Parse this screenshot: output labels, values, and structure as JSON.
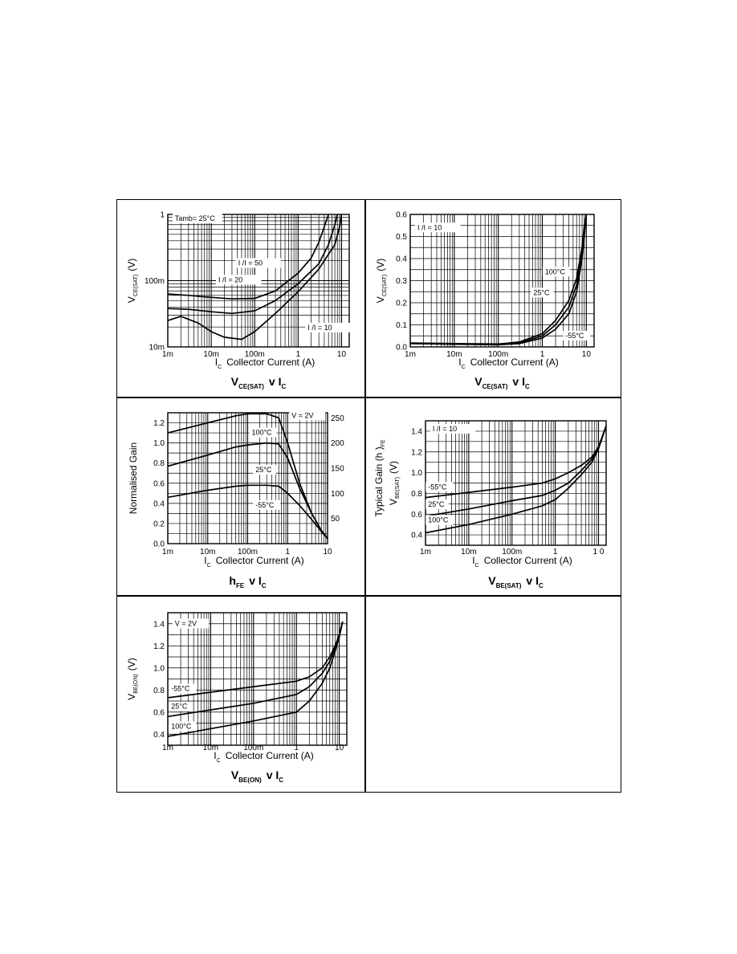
{
  "chart_data": [
    {
      "id": "vcesat-1",
      "type": "line",
      "x_scale": "log",
      "y_scale": "log",
      "xlim": [
        0.001,
        15
      ],
      "ylim": [
        0.01,
        1
      ],
      "x_ticks": [
        {
          "v": 0.001,
          "t": "1m"
        },
        {
          "v": 0.01,
          "t": "10m"
        },
        {
          "v": 0.1,
          "t": "100m"
        },
        {
          "v": 1,
          "t": "1"
        },
        {
          "v": 10,
          "t": "10"
        }
      ],
      "y_ticks": [
        {
          "v": 1,
          "t": "1"
        },
        {
          "v": 0.1,
          "t": "100m"
        },
        {
          "v": 0.01,
          "t": "10m"
        }
      ],
      "xlabel_sub": "C",
      "xlabel_main": "Collector Current (A)",
      "ylabel_main": "V",
      "ylabel_sub": "CE(SAT)",
      "ylabel_unit": "(V)",
      "title_main": "V",
      "title_sub1": "CE(SAT)",
      "title_mid": "v I",
      "title_sub2": "C",
      "annotations": [
        {
          "text": "Tamb= 25°C",
          "x": 0.0014,
          "y": 0.8
        },
        {
          "text": "I /I = 50",
          "x": 0.04,
          "y": 0.17
        },
        {
          "text": "I /I = 20",
          "x": 0.014,
          "y": 0.095
        },
        {
          "text": "I /I = 10",
          "x": 1.6,
          "y": 0.018
        }
      ],
      "series": [
        {
          "x": [
            0.001,
            0.003,
            0.01,
            0.03,
            0.1,
            0.3,
            1,
            2,
            3,
            4,
            5
          ],
          "y": [
            0.063,
            0.06,
            0.056,
            0.053,
            0.054,
            0.07,
            0.13,
            0.22,
            0.38,
            0.65,
            1.0
          ]
        },
        {
          "x": [
            0.001,
            0.003,
            0.01,
            0.03,
            0.1,
            0.3,
            1,
            3,
            5,
            7,
            8
          ],
          "y": [
            0.038,
            0.037,
            0.034,
            0.032,
            0.035,
            0.05,
            0.09,
            0.18,
            0.35,
            0.7,
            1.0
          ]
        },
        {
          "x": [
            0.001,
            0.002,
            0.005,
            0.01,
            0.02,
            0.05,
            0.1,
            0.3,
            1,
            3,
            7,
            9,
            10
          ],
          "y": [
            0.025,
            0.029,
            0.023,
            0.017,
            0.014,
            0.013,
            0.017,
            0.032,
            0.068,
            0.15,
            0.35,
            0.65,
            1.0
          ]
        }
      ]
    },
    {
      "id": "vcesat-2",
      "type": "line",
      "x_scale": "log",
      "y_scale": "linear",
      "xlim": [
        0.001,
        15
      ],
      "ylim": [
        0,
        0.6
      ],
      "x_ticks": [
        {
          "v": 0.001,
          "t": "1m"
        },
        {
          "v": 0.01,
          "t": "10m"
        },
        {
          "v": 0.1,
          "t": "100m"
        },
        {
          "v": 1,
          "t": "1"
        },
        {
          "v": 10,
          "t": "10"
        }
      ],
      "y_ticks": [
        {
          "v": 0,
          "t": "0.0"
        },
        {
          "v": 0.1,
          "t": "0.1"
        },
        {
          "v": 0.2,
          "t": "0.2"
        },
        {
          "v": 0.3,
          "t": "0.3"
        },
        {
          "v": 0.4,
          "t": "0.4"
        },
        {
          "v": 0.5,
          "t": "0.5"
        },
        {
          "v": 0.6,
          "t": "0.6"
        }
      ],
      "xlabel_sub": "C",
      "xlabel_main": "Collector Current (A)",
      "ylabel_main": "V",
      "ylabel_sub": "CE(SAT)",
      "ylabel_unit": "(V)",
      "title_main": "V",
      "title_sub1": "CE(SAT)",
      "title_mid": "v I",
      "title_sub2": "C",
      "annotations": [
        {
          "text": "I /I = 10",
          "x": 0.0014,
          "y": 0.53
        },
        {
          "text": "100°C",
          "x": 1.1,
          "y": 0.33
        },
        {
          "text": "25°C",
          "x": 0.6,
          "y": 0.235
        },
        {
          "text": "-55°C",
          "x": 3.2,
          "y": 0.04
        }
      ],
      "series": [
        {
          "x": [
            0.001,
            0.01,
            0.1,
            0.3,
            1,
            2,
            4,
            6,
            8,
            9,
            10
          ],
          "y": [
            0.015,
            0.012,
            0.01,
            0.015,
            0.04,
            0.08,
            0.15,
            0.25,
            0.4,
            0.5,
            0.6
          ]
        },
        {
          "x": [
            0.001,
            0.01,
            0.1,
            0.3,
            1,
            2,
            4,
            6,
            8,
            9,
            10
          ],
          "y": [
            0.016,
            0.013,
            0.011,
            0.018,
            0.05,
            0.1,
            0.18,
            0.28,
            0.42,
            0.52,
            0.6
          ]
        },
        {
          "x": [
            0.001,
            0.01,
            0.1,
            0.3,
            1,
            2,
            4,
            6,
            8,
            9,
            10
          ],
          "y": [
            0.018,
            0.015,
            0.013,
            0.022,
            0.06,
            0.12,
            0.21,
            0.31,
            0.45,
            0.55,
            0.6
          ]
        }
      ]
    },
    {
      "id": "hfe",
      "type": "line",
      "x_scale": "log",
      "y_scale": "linear",
      "xlim": [
        0.001,
        10
      ],
      "ylim": [
        0,
        1.3
      ],
      "x_ticks": [
        {
          "v": 0.001,
          "t": "1m"
        },
        {
          "v": 0.01,
          "t": "10m"
        },
        {
          "v": 0.1,
          "t": "100m"
        },
        {
          "v": 1,
          "t": "1"
        },
        {
          "v": 10,
          "t": "10"
        }
      ],
      "y_ticks": [
        {
          "v": 0,
          "t": "0.0"
        },
        {
          "v": 0.2,
          "t": "0.2"
        },
        {
          "v": 0.4,
          "t": "0.4"
        },
        {
          "v": 0.6,
          "t": "0.6"
        },
        {
          "v": 0.8,
          "t": "0.8"
        },
        {
          "v": 1.0,
          "t": "1.0"
        },
        {
          "v": 1.2,
          "t": "1.2"
        }
      ],
      "y2_ticks": [
        {
          "v": 250,
          "t": "250"
        },
        {
          "v": 200,
          "t": "200"
        },
        {
          "v": 150,
          "t": "150"
        },
        {
          "v": 100,
          "t": "100"
        },
        {
          "v": 50,
          "t": "50"
        }
      ],
      "y2lim": [
        0,
        260
      ],
      "xlabel_sub": "C",
      "xlabel_main": "Collector Current (A)",
      "ylabel_main": "Normalised Gain",
      "y2label": "Typical Gain (h  )",
      "y2label_sub": "FE",
      "title_main": "h",
      "title_sub1": "FE",
      "title_mid": "v I",
      "title_sub2": "C",
      "annotations": [
        {
          "text": "V  = 2V",
          "x": 1.2,
          "y": 1.25
        },
        {
          "text": "100°C",
          "x": 0.12,
          "y": 1.08
        },
        {
          "text": "25°C",
          "x": 0.15,
          "y": 0.71
        },
        {
          "text": "-55°C",
          "x": 0.15,
          "y": 0.36
        }
      ],
      "series": [
        {
          "x": [
            0.001,
            0.01,
            0.05,
            0.1,
            0.3,
            0.6,
            1,
            2,
            4,
            7,
            10
          ],
          "y": [
            1.1,
            1.2,
            1.27,
            1.29,
            1.29,
            1.25,
            1.0,
            0.6,
            0.3,
            0.13,
            0.05
          ]
        },
        {
          "x": [
            0.001,
            0.01,
            0.05,
            0.1,
            0.3,
            0.6,
            1,
            2,
            4,
            7,
            10
          ],
          "y": [
            0.77,
            0.88,
            0.96,
            0.98,
            1.0,
            0.99,
            0.85,
            0.55,
            0.3,
            0.13,
            0.05
          ]
        },
        {
          "x": [
            0.001,
            0.01,
            0.05,
            0.1,
            0.3,
            0.6,
            1,
            2,
            4,
            7,
            10
          ],
          "y": [
            0.46,
            0.53,
            0.57,
            0.58,
            0.58,
            0.57,
            0.5,
            0.38,
            0.24,
            0.12,
            0.05
          ]
        }
      ]
    },
    {
      "id": "vbesat",
      "type": "line",
      "x_scale": "log",
      "y_scale": "linear",
      "xlim": [
        0.001,
        15
      ],
      "ylim": [
        0.3,
        1.5
      ],
      "x_ticks": [
        {
          "v": 0.001,
          "t": "1m"
        },
        {
          "v": 0.01,
          "t": "10m"
        },
        {
          "v": 0.1,
          "t": "100m"
        },
        {
          "v": 1,
          "t": "1"
        },
        {
          "v": 10,
          "t": "1 0"
        }
      ],
      "y_ticks": [
        {
          "v": 0.4,
          "t": "0.4"
        },
        {
          "v": 0.6,
          "t": "0.6"
        },
        {
          "v": 0.8,
          "t": "0.8"
        },
        {
          "v": 1.0,
          "t": "1.0"
        },
        {
          "v": 1.2,
          "t": "1.2"
        },
        {
          "v": 1.4,
          "t": "1.4"
        }
      ],
      "xlabel_sub": "C",
      "xlabel_main": "Collector Current (A)",
      "ylabel_main": "V",
      "ylabel_sub": "BE(SAT)",
      "ylabel_unit": "(V)",
      "title_main": "V",
      "title_sub1": "BE(SAT)",
      "title_mid": "v I",
      "title_sub2": "C",
      "annotations": [
        {
          "text": "I /I = 10",
          "x": 0.0014,
          "y": 1.4
        },
        {
          "text": "-55°C",
          "x": 0.0011,
          "y": 0.84
        },
        {
          "text": "25°C",
          "x": 0.0011,
          "y": 0.67
        },
        {
          "text": "100°C",
          "x": 0.0011,
          "y": 0.52
        }
      ],
      "series": [
        {
          "x": [
            0.001,
            0.01,
            0.1,
            0.5,
            1,
            2,
            4,
            7,
            10,
            15
          ],
          "y": [
            0.76,
            0.81,
            0.86,
            0.9,
            0.94,
            1.0,
            1.07,
            1.15,
            1.25,
            1.45
          ]
        },
        {
          "x": [
            0.001,
            0.01,
            0.1,
            0.5,
            1,
            2,
            4,
            7,
            10,
            15
          ],
          "y": [
            0.58,
            0.65,
            0.73,
            0.78,
            0.83,
            0.9,
            1.02,
            1.13,
            1.24,
            1.45
          ]
        },
        {
          "x": [
            0.001,
            0.01,
            0.1,
            0.5,
            1,
            2,
            4,
            7,
            10,
            15
          ],
          "y": [
            0.42,
            0.5,
            0.6,
            0.68,
            0.74,
            0.85,
            0.98,
            1.1,
            1.23,
            1.45
          ]
        }
      ]
    },
    {
      "id": "vbeon",
      "type": "line",
      "x_scale": "log",
      "y_scale": "linear",
      "xlim": [
        0.001,
        15
      ],
      "ylim": [
        0.3,
        1.5
      ],
      "x_ticks": [
        {
          "v": 0.001,
          "t": "1m"
        },
        {
          "v": 0.01,
          "t": "10m"
        },
        {
          "v": 0.1,
          "t": "100m"
        },
        {
          "v": 1,
          "t": "1"
        },
        {
          "v": 10,
          "t": "10"
        }
      ],
      "y_ticks": [
        {
          "v": 0.4,
          "t": "0.4"
        },
        {
          "v": 0.6,
          "t": "0.6"
        },
        {
          "v": 0.8,
          "t": "0.8"
        },
        {
          "v": 1.0,
          "t": "1.0"
        },
        {
          "v": 1.2,
          "t": "1.2"
        },
        {
          "v": 1.4,
          "t": "1.4"
        }
      ],
      "xlabel_sub": "C",
      "xlabel_main": "Collector Current (A)",
      "ylabel_main": "V",
      "ylabel_sub": "BE(ON)",
      "ylabel_unit": "(V)",
      "title_main": "V",
      "title_sub1": "BE(ON)",
      "title_mid": "v I",
      "title_sub2": "C",
      "annotations": [
        {
          "text": "V  = 2V",
          "x": 0.0014,
          "y": 1.38
        },
        {
          "text": "-55°C",
          "x": 0.00115,
          "y": 0.79
        },
        {
          "text": "25°C",
          "x": 0.00115,
          "y": 0.63
        },
        {
          "text": "100°C",
          "x": 0.00115,
          "y": 0.45
        }
      ],
      "series": [
        {
          "x": [
            0.001,
            0.01,
            0.1,
            1,
            2,
            4,
            6,
            8,
            10,
            12
          ],
          "y": [
            0.73,
            0.78,
            0.83,
            0.88,
            0.92,
            1.0,
            1.1,
            1.2,
            1.3,
            1.42
          ]
        },
        {
          "x": [
            0.001,
            0.01,
            0.1,
            1,
            2,
            4,
            6,
            8,
            10,
            12
          ],
          "y": [
            0.56,
            0.62,
            0.68,
            0.76,
            0.83,
            0.95,
            1.06,
            1.18,
            1.3,
            1.42
          ]
        },
        {
          "x": [
            0.001,
            0.01,
            0.1,
            1,
            2,
            4,
            6,
            8,
            10,
            12
          ],
          "y": [
            0.38,
            0.45,
            0.52,
            0.6,
            0.7,
            0.86,
            1.0,
            1.15,
            1.28,
            1.42
          ]
        }
      ]
    }
  ]
}
